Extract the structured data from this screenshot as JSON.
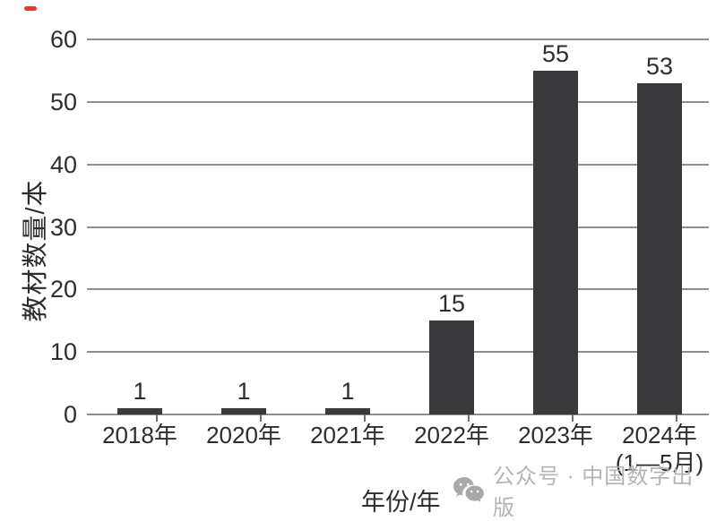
{
  "page": {
    "background": "#ffffff"
  },
  "marker": {
    "color": "#e8392e"
  },
  "chart_data": {
    "type": "bar",
    "title": "",
    "categories": [
      "2018年",
      "2020年",
      "2021年",
      "2022年",
      "2023年",
      "2024年"
    ],
    "category_sublabels": [
      "",
      "",
      "",
      "",
      "",
      "(1—5月)"
    ],
    "values": [
      1,
      1,
      1,
      15,
      55,
      53
    ],
    "bar_labels": [
      "1",
      "1",
      "1",
      "15",
      "55",
      "53"
    ],
    "xlabel": "年份/年",
    "ylabel": "教材数量/本",
    "ylim": [
      0,
      60
    ],
    "ytick_step": 10,
    "ytick_labels": [
      "0",
      "10",
      "20",
      "30",
      "40",
      "50",
      "60"
    ],
    "grid": true,
    "legend_position": "none",
    "colors": {
      "bar": "#39393b",
      "gridline": "#8f8f8f",
      "axis_line": "#8f8f8f",
      "text": "#2d2d2f"
    }
  },
  "watermark": {
    "icon": "wechat-icon",
    "text": "公众号 · 中国数字出版",
    "color": "#b4b4b4"
  }
}
